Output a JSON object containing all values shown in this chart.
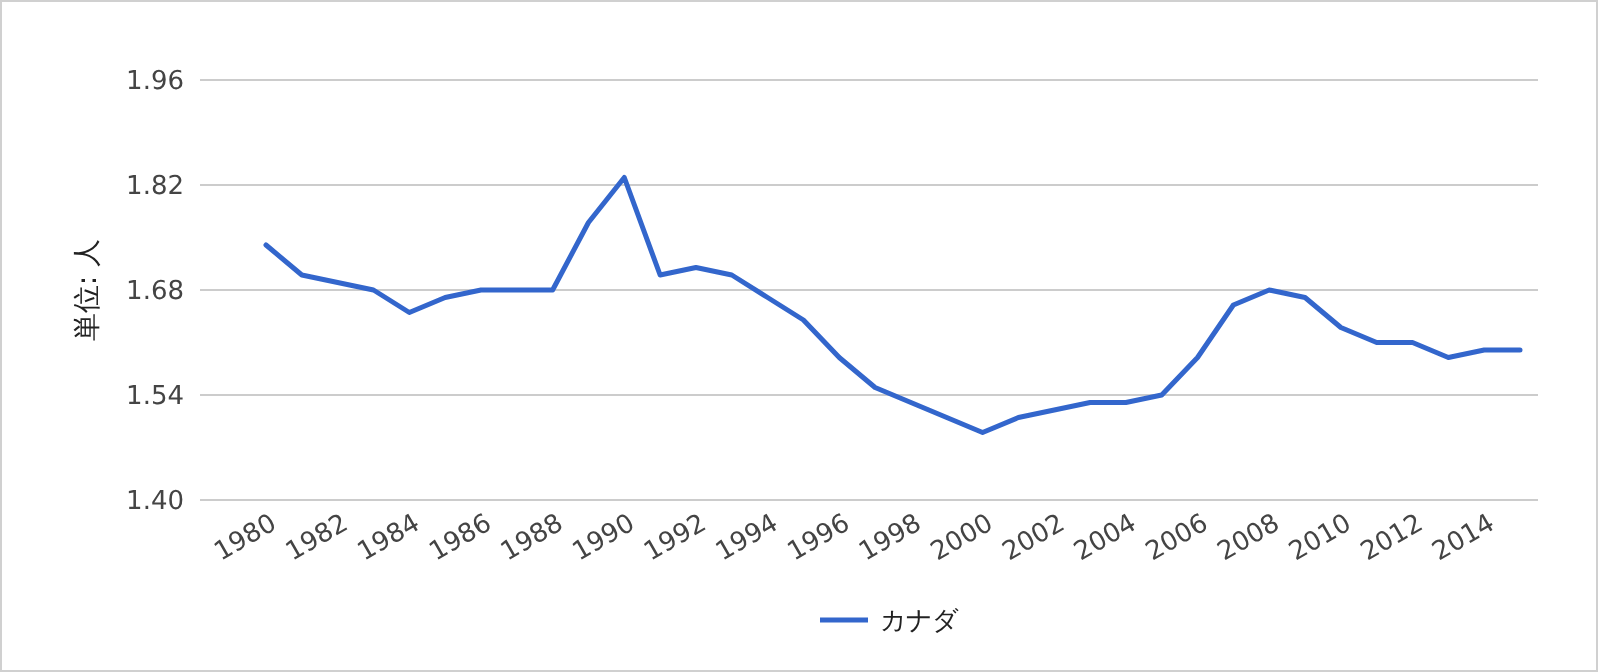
{
  "chart_data": {
    "type": "line",
    "ylabel": "単位: 人",
    "categories": [
      "1980",
      null,
      "1982",
      null,
      "1984",
      null,
      "1986",
      null,
      "1988",
      null,
      "1990",
      null,
      "1992",
      null,
      "1994",
      null,
      "1996",
      null,
      "1998",
      null,
      "2000",
      null,
      "2002",
      null,
      "2004",
      null,
      "2006",
      null,
      "2008",
      null,
      "2010",
      null,
      "2012",
      null,
      "2014",
      null
    ],
    "series": [
      {
        "name": "カナダ",
        "color": "#3366cc",
        "values": [
          1.74,
          1.7,
          1.69,
          1.68,
          1.65,
          1.67,
          1.68,
          1.68,
          1.68,
          1.77,
          1.83,
          1.7,
          1.71,
          1.7,
          1.67,
          1.64,
          1.59,
          1.55,
          1.53,
          1.51,
          1.49,
          1.51,
          1.52,
          1.53,
          1.53,
          1.54,
          1.59,
          1.66,
          1.68,
          1.67,
          1.63,
          1.61,
          1.61,
          1.59,
          1.6,
          1.6
        ]
      }
    ],
    "ylim": [
      1.4,
      1.96
    ],
    "yticks": [
      {
        "value": 1.4,
        "label": "1.40"
      },
      {
        "value": 1.54,
        "label": "1.54"
      },
      {
        "value": 1.68,
        "label": "1.68"
      },
      {
        "value": 1.82,
        "label": "1.82"
      },
      {
        "value": 1.96,
        "label": "1.96"
      }
    ],
    "grid": "y",
    "legend": "bottom",
    "marker": "none",
    "line_style": "solid"
  }
}
